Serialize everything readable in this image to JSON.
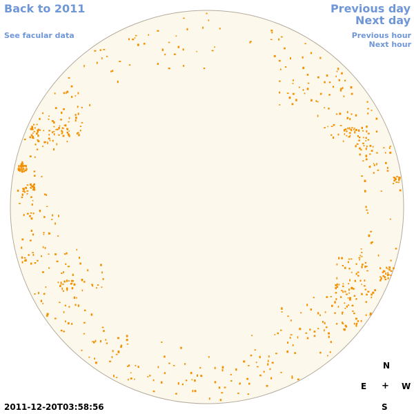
{
  "nav": {
    "back_label": "Back to 2011",
    "facular_label": "See facular data",
    "prev_day_label": "Previous day",
    "next_day_label": "Next day",
    "prev_hour_label": "Previous hour",
    "next_hour_label": "Next hour"
  },
  "timestamp": "2011-12-20T03:58:56",
  "compass": {
    "north": "N",
    "east": "E",
    "center": "+",
    "west": "W",
    "south": "S"
  },
  "colors": {
    "disk_fill": "#fdf8ec",
    "disk_edge": "#b4aa9c",
    "marks": "#f29000",
    "links": "#6f97d8"
  },
  "image": {
    "subject": "solar disk with facular regions",
    "marks_color_name": "orange"
  }
}
